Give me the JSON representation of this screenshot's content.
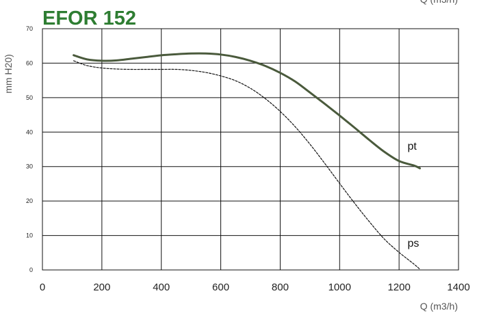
{
  "chart_data": {
    "type": "line",
    "title": "EFOR 152",
    "xlabel": "Q (m3/h)",
    "ylabel": "mm H20)",
    "xlim": [
      0,
      1400
    ],
    "ylim": [
      0,
      70
    ],
    "x_ticks": [
      "0",
      "200",
      "400",
      "600",
      "800",
      "1000",
      "1200",
      "1400"
    ],
    "y_ticks": [
      "0",
      "10",
      "20",
      "30",
      "40",
      "50",
      "60",
      "70"
    ],
    "grid": true,
    "series": [
      {
        "name": "pt",
        "style": "solid",
        "color": "#4a5a3c",
        "x": [
          105,
          150,
          200,
          250,
          300,
          350,
          400,
          450,
          500,
          550,
          600,
          650,
          700,
          750,
          800,
          850,
          900,
          950,
          1000,
          1050,
          1100,
          1150,
          1200,
          1250,
          1270
        ],
        "y": [
          62.3,
          61.1,
          60.7,
          60.8,
          61.3,
          61.8,
          62.3,
          62.6,
          62.8,
          62.8,
          62.5,
          61.8,
          60.7,
          59.2,
          57.2,
          54.7,
          51.5,
          48.2,
          44.8,
          41.3,
          37.7,
          34.3,
          31.6,
          30.3,
          29.5
        ]
      },
      {
        "name": "ps",
        "style": "dashed",
        "color": "#111111",
        "x": [
          105,
          150,
          200,
          250,
          300,
          350,
          400,
          450,
          500,
          550,
          600,
          650,
          700,
          750,
          800,
          850,
          900,
          950,
          1000,
          1050,
          1100,
          1150,
          1200,
          1250,
          1270
        ],
        "y": [
          60.7,
          59.3,
          58.6,
          58.3,
          58.2,
          58.2,
          58.2,
          58.2,
          57.9,
          57.3,
          56.3,
          54.9,
          52.7,
          49.7,
          46.0,
          41.6,
          36.5,
          30.9,
          25.1,
          19.4,
          14.0,
          9.0,
          5.1,
          1.7,
          0.2
        ]
      }
    ]
  }
}
